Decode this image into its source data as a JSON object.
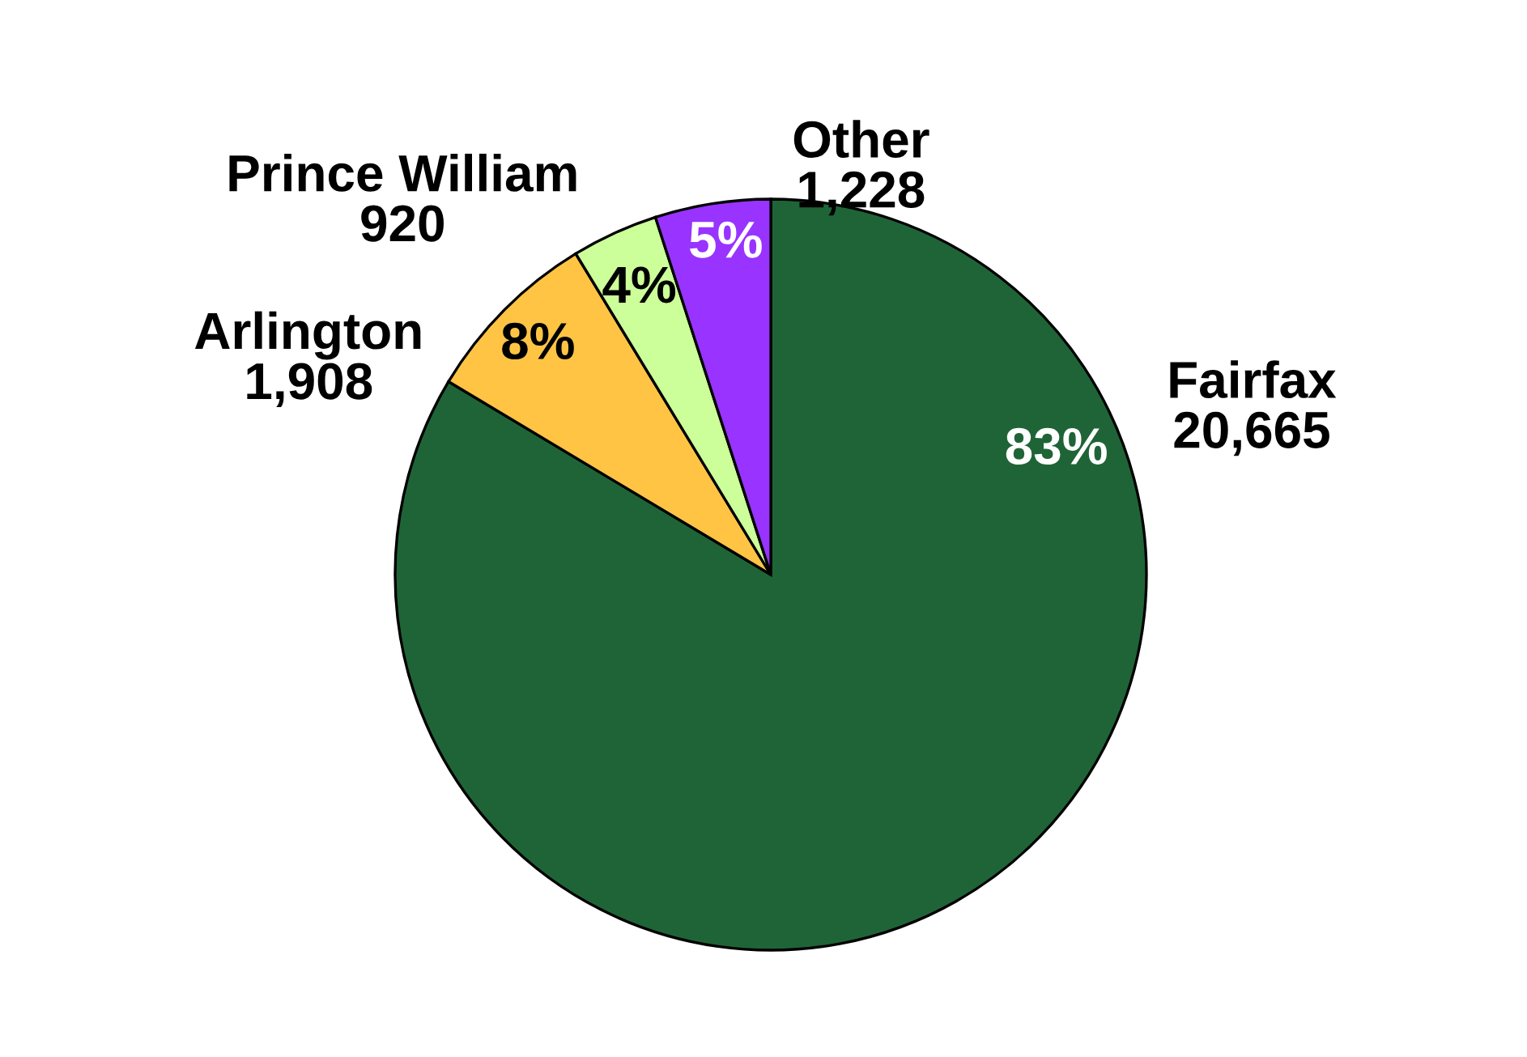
{
  "chart_data": {
    "type": "pie",
    "categories": [
      "Fairfax",
      "Arlington",
      "Prince William",
      "Other"
    ],
    "values": [
      20665,
      1908,
      920,
      1228
    ],
    "colors": [
      "#1f6437",
      "#ffc444",
      "#ccff99",
      "#9933ff"
    ],
    "value_labels": [
      "20,665",
      "1,908",
      "920",
      "1,228"
    ],
    "annotations": [
      "83%",
      "8%",
      "4%",
      "5%"
    ]
  }
}
